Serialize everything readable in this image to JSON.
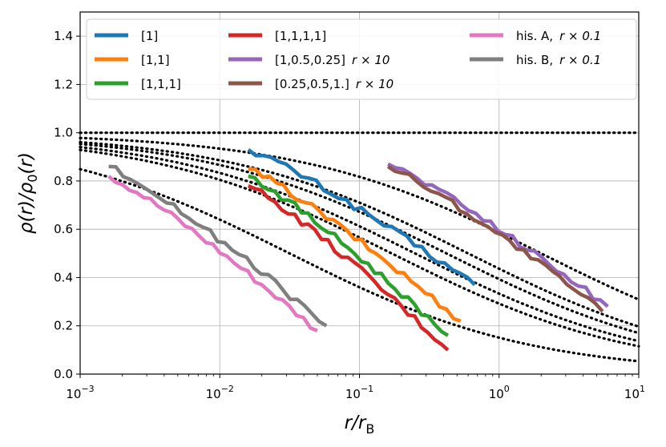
{
  "chart_data": {
    "type": "line",
    "xscale": "log",
    "xlim": [
      0.001,
      10
    ],
    "ylim": [
      0.0,
      1.5
    ],
    "grid": true,
    "legend_position": "top",
    "xlabel": {
      "main": "r/r",
      "sub": "B"
    },
    "ylabel": {
      "main": "ρ(r)/ρ",
      "sub": "0",
      "tail": "(r)"
    },
    "x_ticks": [
      {
        "value": 0.001,
        "base": "10",
        "exp": "−3"
      },
      {
        "value": 0.01,
        "base": "10",
        "exp": "−2"
      },
      {
        "value": 0.1,
        "base": "10",
        "exp": "−1"
      },
      {
        "value": 1,
        "base": "10",
        "exp": "0"
      },
      {
        "value": 10,
        "base": "10",
        "exp": "1"
      }
    ],
    "y_ticks": [
      {
        "value": 0.0,
        "label": "0.0"
      },
      {
        "value": 0.2,
        "label": "0.2"
      },
      {
        "value": 0.4,
        "label": "0.4"
      },
      {
        "value": 0.6,
        "label": "0.6"
      },
      {
        "value": 0.8,
        "label": "0.8"
      },
      {
        "value": 1.0,
        "label": "1.0"
      },
      {
        "value": 1.2,
        "label": "1.2"
      },
      {
        "value": 1.4,
        "label": "1.4"
      }
    ],
    "series": [
      {
        "name": "[1]",
        "color": "#1f77b4",
        "x_start": 0.016,
        "x_end": 0.67,
        "y_start": 0.93,
        "y_end": 0.37
      },
      {
        "name": "[1,1]",
        "color": "#ff7f0e",
        "x_start": 0.016,
        "x_end": 0.53,
        "y_start": 0.85,
        "y_end": 0.22
      },
      {
        "name": "[1,1,1]",
        "color": "#2ca02c",
        "x_start": 0.016,
        "x_end": 0.43,
        "y_start": 0.82,
        "y_end": 0.16
      },
      {
        "name": "[1,1,1,1]",
        "color": "#d62728",
        "x_start": 0.016,
        "x_end": 0.43,
        "y_start": 0.78,
        "y_end": 0.1
      },
      {
        "name": "[1,0.5,0.25]",
        "label_suffix": "r × 10",
        "color": "#9467bd",
        "x_start": 0.16,
        "x_end": 6.0,
        "y_start": 0.87,
        "y_end": 0.28
      },
      {
        "name": "[0.25,0.5,1.]",
        "label_suffix": "r × 10",
        "color": "#8c564b",
        "x_start": 0.16,
        "x_end": 5.5,
        "y_start": 0.86,
        "y_end": 0.26
      },
      {
        "name": "his. A,",
        "label_suffix": "r × 0.1",
        "color": "#e377c2",
        "x_start": 0.0016,
        "x_end": 0.05,
        "y_start": 0.82,
        "y_end": 0.18
      },
      {
        "name": "his. B,",
        "label_suffix": "r × 0.1",
        "color": "#7f7f7f",
        "x_start": 0.0016,
        "x_end": 0.058,
        "y_start": 0.86,
        "y_end": 0.2
      }
    ],
    "reference_curves": [
      {
        "style": "dotted",
        "color": "#000000",
        "scale": 0.0316
      },
      {
        "style": "dotted",
        "color": "#000000",
        "scale": 0.25
      },
      {
        "style": "dotted",
        "color": "#000000",
        "scale": 0.42
      },
      {
        "style": "dotted",
        "color": "#000000",
        "scale": 0.6
      },
      {
        "style": "dotted",
        "color": "#000000",
        "scale": 0.17
      },
      {
        "style": "dotted",
        "color": "#000000",
        "scale": 2.0
      },
      {
        "style": "dotted",
        "color": "#000000",
        "scale": 0.0
      }
    ]
  }
}
